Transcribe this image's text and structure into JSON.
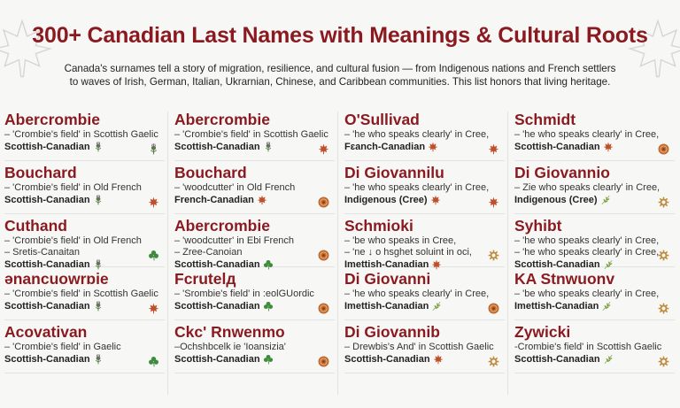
{
  "header": {
    "title": "300+ Canadian Last Names with Meanings & Cultural Roots",
    "intro": [
      "Canada's surnames tell a story of migration, resilience, and cultural fusion — from Indigenous nations and French settlers",
      "to waves of Irish, German, Italian, Ukrarnian, Chinese, and Caribbean communities. This list honors that living heritage."
    ]
  },
  "colors": {
    "accent": "#8a1a1f",
    "maple": "#c0502a",
    "thistle": "#5f7a4a",
    "clover": "#3f8a3c",
    "target": "#c06a2e",
    "sprig": "#7aa040",
    "gear": "#c08a3a"
  },
  "columns": [
    {
      "entries": [
        {
          "name": "Abercrombie",
          "lines": [
            "– 'Crombie's field' in Scottish Gaelic"
          ],
          "origin": "Scottish-Canadian",
          "inline_icon": "thistle",
          "right_icon": "thistle"
        },
        {
          "name": "Bouchard",
          "lines": [
            "– 'Crombie's field' in Old French"
          ],
          "origin": "Scottish-Canadian",
          "inline_icon": "thistle",
          "right_icon": "maple"
        },
        {
          "name": "Cuthand",
          "lines": [
            "– 'Crombie's field' in Old French",
            "– Sretis-Canaitan"
          ],
          "origin": "Scottish-Canadian",
          "inline_icon": "thistle",
          "right_icon": "clover"
        },
        {
          "name": "ənancuowrɒie",
          "lines": [
            "– 'Crombie's field' in Scottish Gaelic"
          ],
          "origin": "Scottish-Canadian",
          "inline_icon": "thistle",
          "right_icon": "maple"
        },
        {
          "name": "Acovativan",
          "lines": [
            "– 'Crombie's field' in Gaelic"
          ],
          "origin": "Scottish-Canadian",
          "inline_icon": "thistle",
          "right_icon": "clover"
        }
      ]
    },
    {
      "entries": [
        {
          "name": "Abercrombie",
          "lines": [
            "– 'Crombie's field' in Scottish Gaelic"
          ],
          "origin": "Scottish-Canadian",
          "inline_icon": "thistle",
          "right_icon": "maple"
        },
        {
          "name": "Bouchard",
          "lines": [
            "– 'woodcutter' in Old French"
          ],
          "origin": "French-Canadian",
          "inline_icon": "maple",
          "right_icon": "target"
        },
        {
          "name": "Abercrombie",
          "lines": [
            "– 'woodcutter' in Ebi French",
            "– Zree-Canoian"
          ],
          "origin": "Scottish-Canadian",
          "inline_icon": "clover",
          "right_icon": "target"
        },
        {
          "name": "Fcrutelд",
          "lines": [
            "– 'Srombie's field' in :eolGUordic"
          ],
          "origin": "Scottish-Canadian",
          "inline_icon": "clover",
          "right_icon": "target"
        },
        {
          "name": "Ckc' Rnwenmo",
          "lines": [
            "–Ochshbcelk ie 'Ioansizia'"
          ],
          "origin": "Scottish-Canadian",
          "inline_icon": "clover",
          "right_icon": "target"
        }
      ]
    },
    {
      "entries": [
        {
          "name": "O'Sullivad",
          "lines": [
            "– 'he who speaks clearly' in Cree,"
          ],
          "origin": "Fɛanch-Canadian",
          "inline_icon": "maple",
          "right_icon": "maple"
        },
        {
          "name": "Di Giovannilu",
          "lines": [
            "– 'he who speaks clearly' in Cree,"
          ],
          "origin": "Indigenous (Cree)",
          "inline_icon": "maple",
          "right_icon": "maple"
        },
        {
          "name": "Schmioki",
          "lines": [
            "– 'be who speaks in Cree,",
            "– 'ne ↓ o hsghet soluint in oci,"
          ],
          "origin": "Imettish-Canadian",
          "inline_icon": "maple",
          "right_icon": "gear"
        },
        {
          "name": "Di Giovanni",
          "lines": [
            "– 'he who speaks clearly' in Cree,"
          ],
          "origin": "Imettish-Canadian",
          "inline_icon": "sprig",
          "right_icon": "target"
        },
        {
          "name": "Di Giovannib",
          "lines": [
            "– Drewbis's And' in Scottish Gaelic"
          ],
          "origin": "Scottish-Canadian",
          "inline_icon": "maple",
          "right_icon": "gear"
        }
      ]
    },
    {
      "entries": [
        {
          "name": "Schmidt",
          "lines": [
            "– 'he who speaks clearly' in Cree,"
          ],
          "origin": "Scottish-Canadian",
          "inline_icon": "maple",
          "right_icon": "target"
        },
        {
          "name": "Di Giovannio",
          "lines": [
            "– Zie who speaks clearly' in Cree,"
          ],
          "origin": "Indigenous (Cree)",
          "inline_icon": "sprig",
          "right_icon": "gear"
        },
        {
          "name": "Syhibt",
          "lines": [
            "– 'he who speaks clearly' in Cree,",
            "– 'he who speaks clearly' in Cree,"
          ],
          "origin": "Scottish-Canadian",
          "inline_icon": "sprig",
          "right_icon": "gear"
        },
        {
          "name": "KA Stnwuonv",
          "lines": [
            "– 'be who speaks clearly' in Cree,"
          ],
          "origin": "Imettish-Canadian",
          "inline_icon": "sprig",
          "right_icon": "gear"
        },
        {
          "name": "Zywicki",
          "lines": [
            "-Crombie's field' in Scottish Gaelic"
          ],
          "origin": "Scottish-Canadian",
          "inline_icon": "sprig",
          "right_icon": "gear"
        }
      ]
    }
  ]
}
